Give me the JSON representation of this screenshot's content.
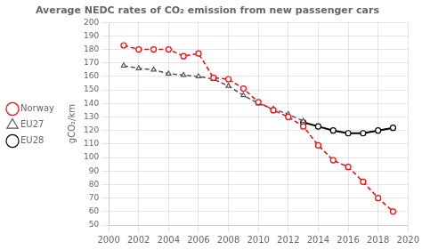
{
  "chart_data": {
    "type": "line",
    "title": "Average NEDC rates of CO₂ emission from new passenger cars",
    "ylabel": "gCO₂/km",
    "xlim": [
      2000,
      2020
    ],
    "ylim": [
      50,
      200
    ],
    "xticks": [
      2000,
      2002,
      2004,
      2006,
      2008,
      2010,
      2012,
      2014,
      2016,
      2018,
      2020
    ],
    "yticks": [
      50,
      60,
      70,
      80,
      90,
      100,
      110,
      120,
      130,
      140,
      150,
      160,
      170,
      180,
      190,
      200
    ],
    "grid": true,
    "legend": "left",
    "series": [
      {
        "name": "Norway",
        "color": "#FF0000",
        "marker": "circle",
        "line_style": "dashed",
        "x": [
          2001,
          2002,
          2003,
          2004,
          2005,
          2006,
          2007,
          2008,
          2009,
          2010,
          2011,
          2012,
          2013,
          2014,
          2015,
          2016,
          2017,
          2018,
          2019
        ],
        "values": [
          183,
          180,
          180,
          180,
          175,
          177,
          159,
          158,
          151,
          141,
          135,
          130,
          123,
          109,
          98,
          93,
          82,
          70,
          60
        ]
      },
      {
        "name": "EU27",
        "color": "#555555",
        "marker": "triangle",
        "line_style": "dashed",
        "x": [
          2001,
          2002,
          2003,
          2004,
          2005,
          2006,
          2007,
          2008,
          2009,
          2010,
          2011,
          2012,
          2013
        ],
        "values": [
          168,
          166,
          165,
          162,
          161,
          160,
          158,
          153,
          146,
          140,
          136,
          132,
          127
        ]
      },
      {
        "name": "EU28",
        "color": "#000000",
        "marker": "circle",
        "line_style": "solid",
        "x": [
          2013,
          2014,
          2015,
          2016,
          2017,
          2018,
          2019
        ],
        "values": [
          126,
          123,
          120,
          118,
          118,
          120,
          122
        ]
      }
    ]
  }
}
